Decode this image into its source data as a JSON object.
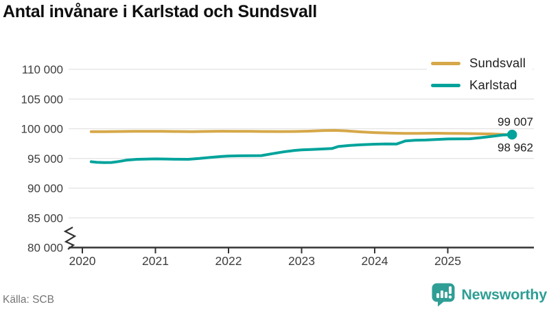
{
  "title": "Antal invånare i Karlstad och Sundsvall",
  "source": "Källa: SCB",
  "branding": {
    "name": "Newsworthy",
    "color": "#2f9e95"
  },
  "colors": {
    "sundsvall": "#d6a84a",
    "karlstad": "#00a39b",
    "grid": "#e2e2e2",
    "axis": "#333333",
    "tick_text": "#3d3d3d",
    "value_label_text": "#1d1d1d",
    "title_text": "#0f0f0f",
    "source_text": "#757575",
    "brand_teal": "#2f9e95"
  },
  "chart_data": {
    "type": "line",
    "title": "Antal invånare i Karlstad och Sundsvall",
    "xlabel": "",
    "ylabel": "",
    "grid": "horizontal",
    "legend_position": "top-right",
    "x_range_years": [
      2020,
      2026
    ],
    "y_axis": {
      "break_at_bottom": true,
      "ticks": [
        {
          "value": 110000,
          "label": "110 000"
        },
        {
          "value": 105000,
          "label": "105 000"
        },
        {
          "value": 100000,
          "label": "100 000"
        },
        {
          "value": 95000,
          "label": "95 000"
        },
        {
          "value": 90000,
          "label": "90 000"
        },
        {
          "value": 85000,
          "label": "85 000"
        },
        {
          "value": 80000,
          "label": "80 000"
        }
      ]
    },
    "x_axis": {
      "ticks": [
        {
          "value": 2020,
          "label": "2020"
        },
        {
          "value": 2021,
          "label": "2021"
        },
        {
          "value": 2022,
          "label": "2022"
        },
        {
          "value": 2023,
          "label": "2023"
        },
        {
          "value": 2024,
          "label": "2024"
        },
        {
          "value": 2025,
          "label": "2025"
        }
      ]
    },
    "series": [
      {
        "name": "Sundsvall",
        "color": "#d6a84a",
        "end_value": 98962,
        "end_label": "98 962",
        "end_dot": false,
        "points": [
          [
            2020.12,
            99520
          ],
          [
            2020.3,
            99520
          ],
          [
            2020.5,
            99540
          ],
          [
            2020.7,
            99560
          ],
          [
            2020.9,
            99570
          ],
          [
            2021.1,
            99560
          ],
          [
            2021.3,
            99540
          ],
          [
            2021.5,
            99500
          ],
          [
            2021.7,
            99550
          ],
          [
            2021.9,
            99580
          ],
          [
            2022.1,
            99570
          ],
          [
            2022.3,
            99560
          ],
          [
            2022.5,
            99540
          ],
          [
            2022.7,
            99530
          ],
          [
            2022.9,
            99540
          ],
          [
            2023.1,
            99600
          ],
          [
            2023.3,
            99700
          ],
          [
            2023.45,
            99720
          ],
          [
            2023.6,
            99650
          ],
          [
            2023.8,
            99480
          ],
          [
            2024.0,
            99350
          ],
          [
            2024.2,
            99270
          ],
          [
            2024.4,
            99230
          ],
          [
            2024.6,
            99230
          ],
          [
            2024.8,
            99250
          ],
          [
            2025.0,
            99230
          ],
          [
            2025.2,
            99200
          ],
          [
            2025.4,
            99160
          ],
          [
            2025.6,
            99120
          ],
          [
            2025.75,
            99050
          ],
          [
            2025.88,
            98962
          ]
        ]
      },
      {
        "name": "Karlstad",
        "color": "#00a39b",
        "end_value": 99007,
        "end_label": "99 007",
        "end_dot": true,
        "points": [
          [
            2020.12,
            94450
          ],
          [
            2020.2,
            94350
          ],
          [
            2020.3,
            94300
          ],
          [
            2020.4,
            94320
          ],
          [
            2020.5,
            94480
          ],
          [
            2020.6,
            94700
          ],
          [
            2020.75,
            94850
          ],
          [
            2020.9,
            94900
          ],
          [
            2021.0,
            94920
          ],
          [
            2021.15,
            94900
          ],
          [
            2021.3,
            94870
          ],
          [
            2021.45,
            94860
          ],
          [
            2021.6,
            95000
          ],
          [
            2021.75,
            95180
          ],
          [
            2021.9,
            95330
          ],
          [
            2022.0,
            95400
          ],
          [
            2022.15,
            95440
          ],
          [
            2022.3,
            95460
          ],
          [
            2022.45,
            95480
          ],
          [
            2022.6,
            95800
          ],
          [
            2022.75,
            96100
          ],
          [
            2022.9,
            96350
          ],
          [
            2023.0,
            96450
          ],
          [
            2023.15,
            96520
          ],
          [
            2023.3,
            96600
          ],
          [
            2023.42,
            96680
          ],
          [
            2023.5,
            97000
          ],
          [
            2023.65,
            97180
          ],
          [
            2023.8,
            97300
          ],
          [
            2024.0,
            97400
          ],
          [
            2024.15,
            97440
          ],
          [
            2024.3,
            97420
          ],
          [
            2024.42,
            97950
          ],
          [
            2024.55,
            98060
          ],
          [
            2024.7,
            98100
          ],
          [
            2024.85,
            98200
          ],
          [
            2025.0,
            98280
          ],
          [
            2025.15,
            98300
          ],
          [
            2025.3,
            98310
          ],
          [
            2025.45,
            98500
          ],
          [
            2025.6,
            98700
          ],
          [
            2025.75,
            98950
          ],
          [
            2025.88,
            99007
          ]
        ]
      }
    ]
  }
}
